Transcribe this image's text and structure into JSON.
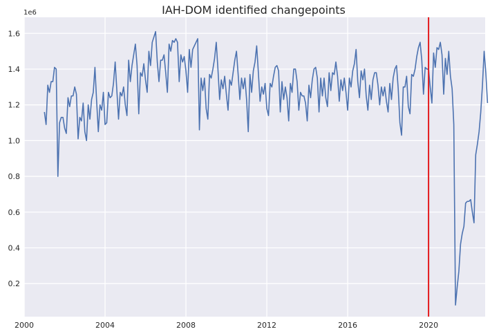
{
  "chart_data": {
    "type": "line",
    "title": "IAH-DOM identified changepoints",
    "xlabel": "",
    "ylabel": "",
    "y_offset_label": "1e6",
    "xlim": [
      2000.0,
      2022.8
    ],
    "ylim": [
      0.015,
      1.69
    ],
    "x_ticks": [
      2000,
      2004,
      2008,
      2012,
      2016,
      2020
    ],
    "y_ticks": [
      0.2,
      0.4,
      0.6,
      0.8,
      1.0,
      1.2,
      1.4,
      1.6
    ],
    "grid": true,
    "line_color": "#4c72b0",
    "changepoint_color": "#e3191c",
    "changepoint_x": 2020.0,
    "series": [
      {
        "x_start": 2001.0,
        "x_step": 0.08333,
        "values": [
          1.16,
          1.09,
          1.31,
          1.27,
          1.33,
          1.33,
          1.41,
          1.4,
          0.8,
          1.1,
          1.13,
          1.13,
          1.07,
          1.04,
          1.24,
          1.19,
          1.25,
          1.25,
          1.3,
          1.26,
          1.01,
          1.13,
          1.11,
          1.21,
          1.05,
          1.0,
          1.2,
          1.12,
          1.23,
          1.27,
          1.41,
          1.22,
          1.05,
          1.2,
          1.17,
          1.27,
          1.09,
          1.1,
          1.27,
          1.24,
          1.25,
          1.32,
          1.44,
          1.28,
          1.12,
          1.27,
          1.25,
          1.3,
          1.2,
          1.14,
          1.45,
          1.33,
          1.42,
          1.48,
          1.54,
          1.42,
          1.15,
          1.38,
          1.36,
          1.43,
          1.34,
          1.27,
          1.5,
          1.42,
          1.55,
          1.58,
          1.61,
          1.44,
          1.33,
          1.45,
          1.45,
          1.48,
          1.38,
          1.27,
          1.54,
          1.5,
          1.56,
          1.55,
          1.57,
          1.55,
          1.33,
          1.48,
          1.44,
          1.47,
          1.39,
          1.27,
          1.51,
          1.41,
          1.51,
          1.53,
          1.55,
          1.57,
          1.06,
          1.35,
          1.28,
          1.35,
          1.18,
          1.12,
          1.37,
          1.35,
          1.4,
          1.46,
          1.55,
          1.4,
          1.23,
          1.34,
          1.29,
          1.36,
          1.26,
          1.17,
          1.34,
          1.31,
          1.38,
          1.45,
          1.5,
          1.37,
          1.23,
          1.35,
          1.29,
          1.35,
          1.23,
          1.05,
          1.37,
          1.27,
          1.39,
          1.44,
          1.53,
          1.38,
          1.22,
          1.3,
          1.26,
          1.32,
          1.18,
          1.14,
          1.32,
          1.3,
          1.36,
          1.41,
          1.42,
          1.39,
          1.16,
          1.33,
          1.23,
          1.3,
          1.24,
          1.11,
          1.32,
          1.27,
          1.4,
          1.4,
          1.33,
          1.17,
          1.27,
          1.25,
          1.25,
          1.21,
          1.11,
          1.31,
          1.24,
          1.34,
          1.4,
          1.41,
          1.35,
          1.16,
          1.35,
          1.25,
          1.35,
          1.24,
          1.19,
          1.38,
          1.28,
          1.38,
          1.37,
          1.44,
          1.36,
          1.22,
          1.34,
          1.28,
          1.35,
          1.27,
          1.17,
          1.35,
          1.3,
          1.39,
          1.43,
          1.51,
          1.33,
          1.24,
          1.39,
          1.34,
          1.4,
          1.25,
          1.17,
          1.31,
          1.23,
          1.34,
          1.38,
          1.38,
          1.31,
          1.2,
          1.3,
          1.25,
          1.3,
          1.22,
          1.16,
          1.32,
          1.23,
          1.35,
          1.4,
          1.42,
          1.29,
          1.1,
          1.03,
          1.3,
          1.3,
          1.36,
          1.19,
          1.15,
          1.37,
          1.36,
          1.4,
          1.47,
          1.52,
          1.55,
          1.45,
          1.26,
          1.41,
          1.4,
          1.4,
          1.3,
          1.21,
          1.49,
          1.41,
          1.52,
          1.51,
          1.55,
          1.48,
          1.26,
          1.46,
          1.37,
          1.5,
          1.36,
          1.29,
          1.09,
          0.08,
          0.18,
          0.27,
          0.42,
          0.48,
          0.52,
          0.65,
          0.66,
          0.66,
          0.67,
          0.6,
          0.54,
          0.92,
          0.98,
          1.05,
          1.16,
          1.31,
          1.5,
          1.38,
          1.21
        ]
      }
    ]
  }
}
